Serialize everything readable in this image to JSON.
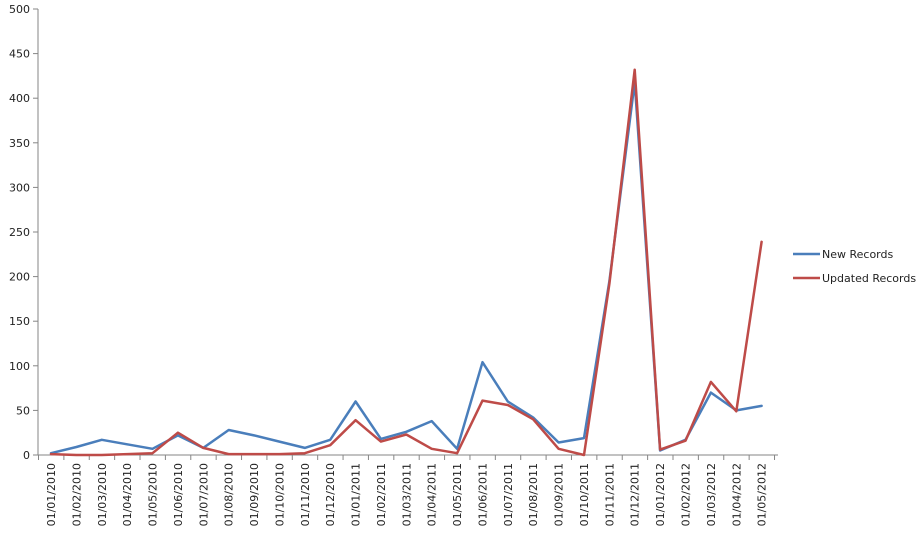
{
  "chart_data": {
    "type": "line",
    "title": "",
    "xlabel": "",
    "ylabel": "",
    "ylim": [
      0,
      500
    ],
    "yticks": [
      0,
      50,
      100,
      150,
      200,
      250,
      300,
      350,
      400,
      450,
      500
    ],
    "grid": false,
    "legend_position": "right",
    "categories": [
      "01/01/2010",
      "01/02/2010",
      "01/03/2010",
      "01/04/2010",
      "01/05/2010",
      "01/06/2010",
      "01/07/2010",
      "01/08/2010",
      "01/09/2010",
      "01/10/2010",
      "01/11/2010",
      "01/12/2010",
      "01/01/2011",
      "01/02/2011",
      "01/03/2011",
      "01/04/2011",
      "01/05/2011",
      "01/06/2011",
      "01/07/2011",
      "01/08/2011",
      "01/09/2011",
      "01/10/2011",
      "01/11/2011",
      "01/12/2011",
      "01/01/2012",
      "01/02/2012",
      "01/03/2012",
      "01/04/2012",
      "01/05/2012"
    ],
    "series": [
      {
        "name": "New Records",
        "color": "#4a7ebb",
        "values": [
          2,
          9,
          17,
          12,
          7,
          22,
          8,
          28,
          22,
          15,
          8,
          17,
          60,
          18,
          26,
          38,
          7,
          104,
          60,
          42,
          14,
          19,
          195,
          418,
          5,
          17,
          70,
          50,
          55
        ]
      },
      {
        "name": "Updated Records",
        "color": "#be4b48",
        "values": [
          1,
          0,
          0,
          1,
          2,
          25,
          8,
          1,
          1,
          1,
          2,
          11,
          39,
          15,
          23,
          7,
          2,
          61,
          56,
          40,
          7,
          0,
          192,
          432,
          6,
          16,
          82,
          49,
          239
        ]
      }
    ]
  }
}
